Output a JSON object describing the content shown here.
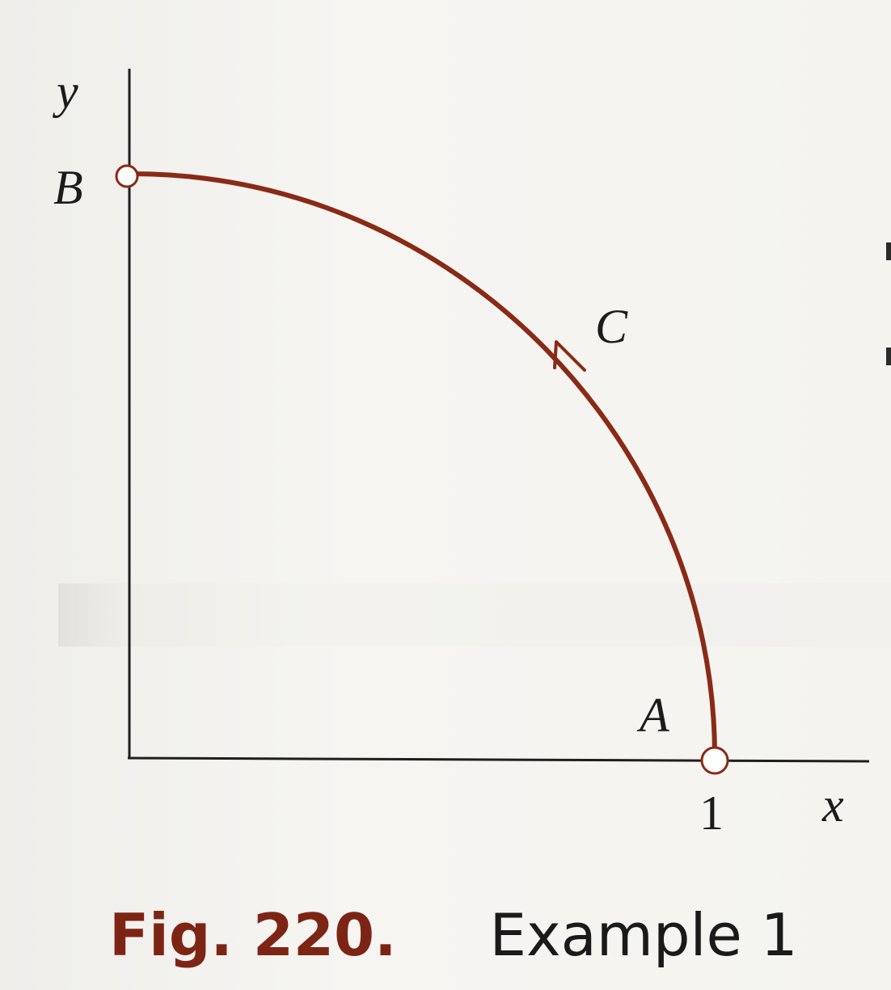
{
  "figure": {
    "axis_x_label": "x",
    "axis_y_label": "y",
    "tick_x": "1",
    "point_a_label": "A",
    "point_b_label": "B",
    "curve_label": "C",
    "curve_color": "#8a2a16"
  },
  "caption": {
    "number": "Fig. 220.",
    "text": "Example 1"
  }
}
